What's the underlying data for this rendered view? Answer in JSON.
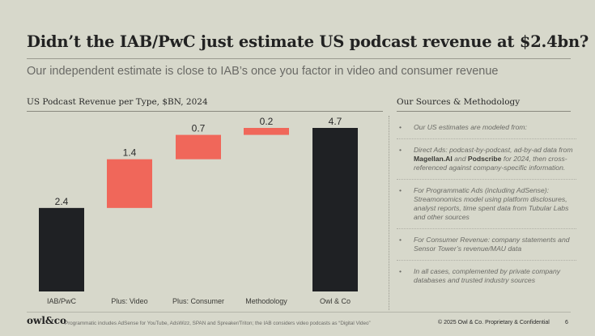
{
  "slide": {
    "title": "Didn’t the IAB/PwC just estimate US podcast revenue at $2.4bn?",
    "subtitle": "Our independent estimate is close to IAB’s once you factor in video and consumer revenue",
    "chart_title": "US Podcast Revenue per Type, $BN, 2024",
    "panel_title": "Our Sources & Methodology"
  },
  "colors": {
    "background": "#d7d8cb",
    "base_bar": "#1f2124",
    "increment_bar": "#f0675a"
  },
  "notes": [
    {
      "bullet": "•",
      "parts": [
        {
          "t": "Our US estimates are modeled from:"
        }
      ]
    },
    {
      "bullet": "•",
      "parts": [
        {
          "t": "Direct Ads: podcast-by-podcast, ad-by-ad data from "
        },
        {
          "t": "Magellan.AI",
          "b": true
        },
        {
          "t": " and "
        },
        {
          "t": "Podscribe",
          "b": true
        },
        {
          "t": " for 2024, then cross-referenced against company-specific information."
        }
      ]
    },
    {
      "bullet": "•",
      "parts": [
        {
          "t": "For Programmatic Ads (including AdSense): Streamonomics model using platform disclosures, analyst reports, time spent data from Tubular Labs and other sources"
        }
      ]
    },
    {
      "bullet": "•",
      "parts": [
        {
          "t": "For Consumer Revenue: company statements and Sensor Tower’s revenue/MAU data"
        }
      ]
    },
    {
      "bullet": "•",
      "parts": [
        {
          "t": "In all cases, complemented by private company databases and trusted industry sources"
        }
      ]
    }
  ],
  "footer": {
    "logo": "owl&co",
    "footnote": "Programmatic includes AdSense for YouTube, AdsWizz, SPAN and Spreaker/Triton; the IAB considers video podcasts as “Digital Video”",
    "copyright": "© 2025 Owl & Co. Proprietary & Confidential",
    "page": "6"
  },
  "chart_data": {
    "type": "bar",
    "variant": "waterfall",
    "title": "US Podcast Revenue per Type, $BN, 2024",
    "categories": [
      "IAB/PwC",
      "Plus: Video",
      "Plus: Consumer",
      "Methodology",
      "Owl & Co"
    ],
    "values": [
      2.4,
      1.4,
      0.7,
      0.2,
      4.7
    ],
    "bar_kind": [
      "total",
      "increment",
      "increment",
      "increment",
      "total"
    ],
    "data_labels": [
      "2.4",
      "1.4",
      "0.7",
      "0.2",
      "4.7"
    ],
    "xlabel": "",
    "ylabel": "",
    "ylim": [
      0,
      4.7
    ],
    "grid": false,
    "legend": "none"
  }
}
